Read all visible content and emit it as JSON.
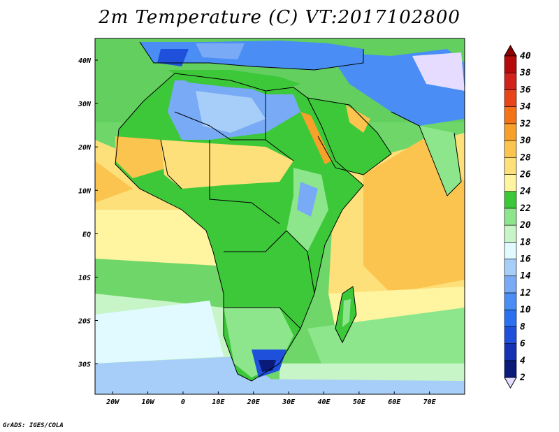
{
  "title": "2m Temperature (C) VT:2017102800",
  "credit": "GrADS: IGES/COLA",
  "map": {
    "lon_range": [
      -25,
      80
    ],
    "lat_range": [
      -37,
      45
    ],
    "lon_ticks": [
      {
        "value": -20,
        "label": "20W"
      },
      {
        "value": -10,
        "label": "10W"
      },
      {
        "value": 0,
        "label": "0"
      },
      {
        "value": 10,
        "label": "10E"
      },
      {
        "value": 20,
        "label": "20E"
      },
      {
        "value": 30,
        "label": "30E"
      },
      {
        "value": 40,
        "label": "40E"
      },
      {
        "value": 50,
        "label": "50E"
      },
      {
        "value": 60,
        "label": "60E"
      },
      {
        "value": 70,
        "label": "70E"
      }
    ],
    "lat_ticks": [
      {
        "value": 40,
        "label": "40N"
      },
      {
        "value": 30,
        "label": "30N"
      },
      {
        "value": 20,
        "label": "20N"
      },
      {
        "value": 10,
        "label": "10N"
      },
      {
        "value": 0,
        "label": "EQ"
      },
      {
        "value": -10,
        "label": "10S"
      },
      {
        "value": -20,
        "label": "20S"
      },
      {
        "value": -30,
        "label": "30S"
      }
    ]
  },
  "colorbar": {
    "levels": [
      "2",
      "4",
      "6",
      "8",
      "10",
      "12",
      "14",
      "16",
      "18",
      "20",
      "22",
      "24",
      "26",
      "28",
      "30",
      "32",
      "34",
      "36",
      "38",
      "40"
    ],
    "colors": [
      "#e6dcff",
      "#0a1a78",
      "#1532b4",
      "#1e50dc",
      "#2b70f0",
      "#4a8ef5",
      "#78aaf5",
      "#a7cdf9",
      "#e0faff",
      "#c8f5c8",
      "#8ee68c",
      "#3dc83a",
      "#fff5a0",
      "#fde07a",
      "#fac44e",
      "#f7a02a",
      "#f57318",
      "#e8441a",
      "#d2201a",
      "#b40a0a",
      "#8c0000"
    ]
  }
}
